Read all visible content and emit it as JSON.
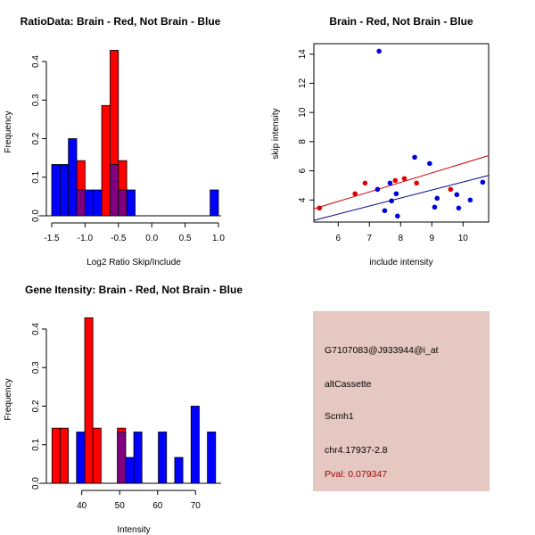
{
  "colors": {
    "red": "#ff0000",
    "blue": "#0000ff",
    "overlap": "#800080",
    "red_line": "#cc0000",
    "blue_line": "#00008b",
    "info_bg": "#e6c8c2",
    "pval": "#990000"
  },
  "chart_data": [
    {
      "type": "bar",
      "title": "RatioData: Brain - Red, Not Brain - Blue",
      "xlabel": "Log2 Ratio Skip/Include",
      "ylabel": "Frequency",
      "xlim": [
        -1.5,
        1.0
      ],
      "ylim": [
        0,
        0.4
      ],
      "xticks": [
        "-1.5",
        "-1.0",
        "-0.5",
        "0.0",
        "0.5",
        "1.0"
      ],
      "xtick_values": [
        -1.5,
        -1.0,
        -0.5,
        0.0,
        0.5,
        1.0
      ],
      "yticks": [
        "0.0",
        "0.1",
        "0.2",
        "0.3",
        "0.4"
      ],
      "ytick_values": [
        0,
        0.1,
        0.2,
        0.3,
        0.4
      ],
      "bin_start": -1.5,
      "bin_width": 0.125,
      "series": [
        {
          "name": "Brain",
          "color": "red",
          "bins": {
            "3": 0.143,
            "6": 0.286,
            "7": 0.429,
            "8": 0.143
          }
        },
        {
          "name": "Not Brain",
          "color": "blue",
          "bins": {
            "0": 0.133,
            "1": 0.133,
            "2": 0.2,
            "3": 0.067,
            "4": 0.067,
            "5": 0.067,
            "7": 0.133,
            "8": 0.067,
            "9": 0.067,
            "19": 0.067
          }
        }
      ]
    },
    {
      "type": "scatter",
      "title": "Brain - Red, Not Brain - Blue",
      "xlabel": "include intensity",
      "ylabel": "skip intensity",
      "xlim": [
        5.21,
        10.83
      ],
      "ylim": [
        2.6,
        14.69
      ],
      "xticks": [
        "6",
        "7",
        "8",
        "9",
        "10"
      ],
      "xtick_values": [
        6,
        7,
        8,
        9,
        10
      ],
      "yticks": [
        "4",
        "6",
        "8",
        "10",
        "12",
        "14"
      ],
      "ytick_values": [
        4,
        6,
        8,
        10,
        12,
        14
      ],
      "series": [
        {
          "name": "Brain",
          "color": "red",
          "points": [
            [
              5.4,
              3.45
            ],
            [
              6.54,
              4.43
            ],
            [
              6.86,
              5.16
            ],
            [
              7.83,
              5.34
            ],
            [
              8.12,
              5.47
            ],
            [
              8.51,
              5.16
            ],
            [
              9.6,
              4.73
            ]
          ],
          "fit": [
            [
              5.21,
              3.39
            ],
            [
              10.83,
              7.05
            ]
          ]
        },
        {
          "name": "Not Brain",
          "color": "blue",
          "points": [
            [
              7.31,
              14.2
            ],
            [
              8.45,
              6.93
            ],
            [
              8.93,
              6.5
            ],
            [
              7.66,
              5.16
            ],
            [
              7.26,
              4.73
            ],
            [
              7.86,
              4.43
            ],
            [
              7.71,
              3.94
            ],
            [
              7.49,
              3.27
            ],
            [
              7.9,
              2.9
            ],
            [
              9.17,
              4.12
            ],
            [
              9.09,
              3.51
            ],
            [
              9.8,
              4.37
            ],
            [
              9.86,
              3.45
            ],
            [
              10.23,
              4.0
            ],
            [
              10.63,
              5.22
            ]
          ],
          "fit": [
            [
              5.21,
              2.6
            ],
            [
              10.83,
              5.69
            ]
          ]
        }
      ]
    },
    {
      "type": "bar",
      "title": "Gene Itensity: Brain - Red, Not Brain - Blue",
      "xlabel": "Intensity",
      "ylabel": "Frequency",
      "xlim": [
        32.15,
        75.3
      ],
      "ylim": [
        0,
        0.4
      ],
      "xticks": [
        "40",
        "50",
        "60",
        "70"
      ],
      "xtick_values": [
        40,
        50,
        60,
        70
      ],
      "yticks": [
        "0.0",
        "0.1",
        "0.2",
        "0.3",
        "0.4"
      ],
      "ytick_values": [
        0,
        0.1,
        0.2,
        0.3,
        0.4
      ],
      "bin_start": 32.15,
      "bin_width": 2.157,
      "series": [
        {
          "name": "Brain",
          "color": "red",
          "bins": {
            "0": 0.143,
            "1": 0.143,
            "4": 0.429,
            "5": 0.143,
            "8": 0.143
          }
        },
        {
          "name": "Not Brain",
          "color": "blue",
          "bins": {
            "3": 0.133,
            "8": 0.133,
            "9": 0.067,
            "10": 0.133,
            "13": 0.133,
            "15": 0.067,
            "17": 0.2,
            "19": 0.133
          }
        }
      ]
    }
  ],
  "info": {
    "probe": "G7107083@J933944@i_at",
    "event_type": "altCassette",
    "gene": "Scmh1",
    "location": "chr4.17937-2.8",
    "pval": "Pval: 0.079347"
  }
}
